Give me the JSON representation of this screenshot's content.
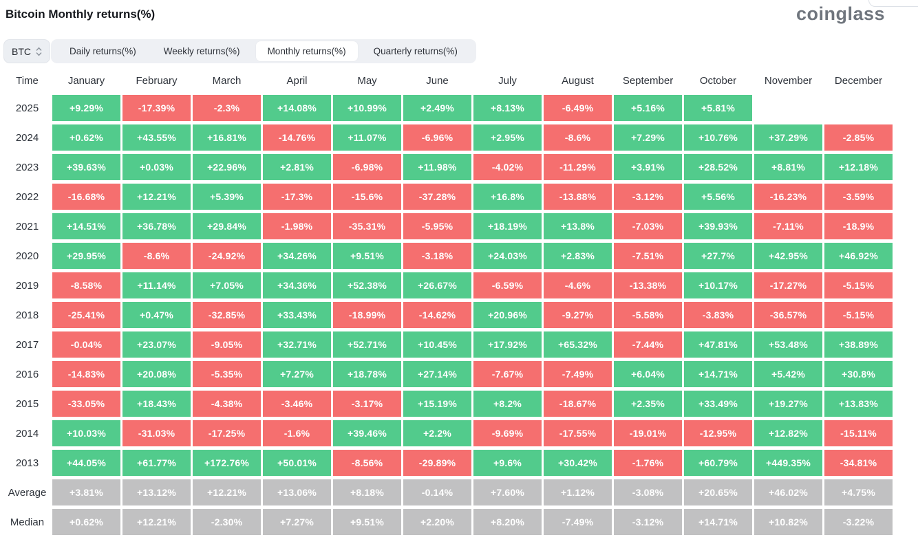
{
  "page": {
    "title": "Bitcoin Monthly returns(%)",
    "logo": "coinglass"
  },
  "controls": {
    "symbol_select": {
      "value": "BTC"
    },
    "tabs": [
      {
        "label": "Daily returns(%)",
        "active": false
      },
      {
        "label": "Weekly returns(%)",
        "active": false
      },
      {
        "label": "Monthly returns(%)",
        "active": true
      },
      {
        "label": "Quarterly returns(%)",
        "active": false
      }
    ]
  },
  "colors": {
    "positive": "#52cb8c",
    "negative": "#f56f6f",
    "aggregate": "#c1c1c2"
  },
  "chart_data": {
    "type": "heatmap",
    "title": "Bitcoin Monthly returns(%)",
    "row_header": "Time",
    "columns": [
      "January",
      "February",
      "March",
      "April",
      "May",
      "June",
      "July",
      "August",
      "September",
      "October",
      "November",
      "December"
    ],
    "rows": [
      {
        "label": "2025",
        "kind": "year",
        "values": [
          "+9.29%",
          "-17.39%",
          "-2.3%",
          "+14.08%",
          "+10.99%",
          "+2.49%",
          "+8.13%",
          "-6.49%",
          "+5.16%",
          "+5.81%",
          "",
          ""
        ]
      },
      {
        "label": "2024",
        "kind": "year",
        "values": [
          "+0.62%",
          "+43.55%",
          "+16.81%",
          "-14.76%",
          "+11.07%",
          "-6.96%",
          "+2.95%",
          "-8.6%",
          "+7.29%",
          "+10.76%",
          "+37.29%",
          "-2.85%"
        ]
      },
      {
        "label": "2023",
        "kind": "year",
        "values": [
          "+39.63%",
          "+0.03%",
          "+22.96%",
          "+2.81%",
          "-6.98%",
          "+11.98%",
          "-4.02%",
          "-11.29%",
          "+3.91%",
          "+28.52%",
          "+8.81%",
          "+12.18%"
        ]
      },
      {
        "label": "2022",
        "kind": "year",
        "values": [
          "-16.68%",
          "+12.21%",
          "+5.39%",
          "-17.3%",
          "-15.6%",
          "-37.28%",
          "+16.8%",
          "-13.88%",
          "-3.12%",
          "+5.56%",
          "-16.23%",
          "-3.59%"
        ]
      },
      {
        "label": "2021",
        "kind": "year",
        "values": [
          "+14.51%",
          "+36.78%",
          "+29.84%",
          "-1.98%",
          "-35.31%",
          "-5.95%",
          "+18.19%",
          "+13.8%",
          "-7.03%",
          "+39.93%",
          "-7.11%",
          "-18.9%"
        ]
      },
      {
        "label": "2020",
        "kind": "year",
        "values": [
          "+29.95%",
          "-8.6%",
          "-24.92%",
          "+34.26%",
          "+9.51%",
          "-3.18%",
          "+24.03%",
          "+2.83%",
          "-7.51%",
          "+27.7%",
          "+42.95%",
          "+46.92%"
        ]
      },
      {
        "label": "2019",
        "kind": "year",
        "values": [
          "-8.58%",
          "+11.14%",
          "+7.05%",
          "+34.36%",
          "+52.38%",
          "+26.67%",
          "-6.59%",
          "-4.6%",
          "-13.38%",
          "+10.17%",
          "-17.27%",
          "-5.15%"
        ]
      },
      {
        "label": "2018",
        "kind": "year",
        "values": [
          "-25.41%",
          "+0.47%",
          "-32.85%",
          "+33.43%",
          "-18.99%",
          "-14.62%",
          "+20.96%",
          "-9.27%",
          "-5.58%",
          "-3.83%",
          "-36.57%",
          "-5.15%"
        ]
      },
      {
        "label": "2017",
        "kind": "year",
        "values": [
          "-0.04%",
          "+23.07%",
          "-9.05%",
          "+32.71%",
          "+52.71%",
          "+10.45%",
          "+17.92%",
          "+65.32%",
          "-7.44%",
          "+47.81%",
          "+53.48%",
          "+38.89%"
        ]
      },
      {
        "label": "2016",
        "kind": "year",
        "values": [
          "-14.83%",
          "+20.08%",
          "-5.35%",
          "+7.27%",
          "+18.78%",
          "+27.14%",
          "-7.67%",
          "-7.49%",
          "+6.04%",
          "+14.71%",
          "+5.42%",
          "+30.8%"
        ]
      },
      {
        "label": "2015",
        "kind": "year",
        "values": [
          "-33.05%",
          "+18.43%",
          "-4.38%",
          "-3.46%",
          "-3.17%",
          "+15.19%",
          "+8.2%",
          "-18.67%",
          "+2.35%",
          "+33.49%",
          "+19.27%",
          "+13.83%"
        ]
      },
      {
        "label": "2014",
        "kind": "year",
        "values": [
          "+10.03%",
          "-31.03%",
          "-17.25%",
          "-1.6%",
          "+39.46%",
          "+2.2%",
          "-9.69%",
          "-17.55%",
          "-19.01%",
          "-12.95%",
          "+12.82%",
          "-15.11%"
        ]
      },
      {
        "label": "2013",
        "kind": "year",
        "values": [
          "+44.05%",
          "+61.77%",
          "+172.76%",
          "+50.01%",
          "-8.56%",
          "-29.89%",
          "+9.6%",
          "+30.42%",
          "-1.76%",
          "+60.79%",
          "+449.35%",
          "-34.81%"
        ]
      },
      {
        "label": "Average",
        "kind": "aggregate",
        "values": [
          "+3.81%",
          "+13.12%",
          "+12.21%",
          "+13.06%",
          "+8.18%",
          "-0.14%",
          "+7.60%",
          "+1.12%",
          "-3.08%",
          "+20.65%",
          "+46.02%",
          "+4.75%"
        ]
      },
      {
        "label": "Median",
        "kind": "aggregate",
        "values": [
          "+0.62%",
          "+12.21%",
          "-2.30%",
          "+7.27%",
          "+9.51%",
          "+2.20%",
          "+8.20%",
          "-7.49%",
          "-3.12%",
          "+14.71%",
          "+10.82%",
          "-3.22%"
        ]
      }
    ]
  }
}
